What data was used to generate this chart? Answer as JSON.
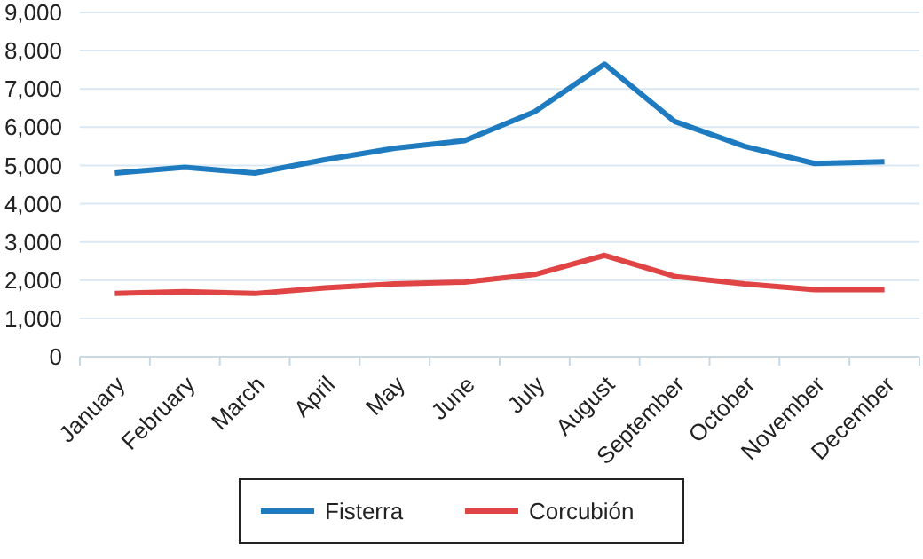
{
  "chart_data": {
    "type": "line",
    "categories": [
      "January",
      "February",
      "March",
      "April",
      "May",
      "June",
      "July",
      "August",
      "September",
      "October",
      "November",
      "December"
    ],
    "series": [
      {
        "name": "Fisterra",
        "color": "#1f7bc0",
        "values": [
          4800,
          4950,
          4800,
          5150,
          5450,
          5650,
          6400,
          7650,
          6150,
          5500,
          5050,
          5100
        ]
      },
      {
        "name": "Corcubión",
        "color": "#e04444",
        "values": [
          1650,
          1700,
          1650,
          1800,
          1900,
          1950,
          2150,
          2650,
          2100,
          1900,
          1750,
          1750
        ]
      }
    ],
    "ylim": [
      0,
      9000
    ],
    "yticks": [
      {
        "value": 0,
        "label": "0"
      },
      {
        "value": 1000,
        "label": "1,000"
      },
      {
        "value": 2000,
        "label": "2,000"
      },
      {
        "value": 3000,
        "label": "3,000"
      },
      {
        "value": 4000,
        "label": "4,000"
      },
      {
        "value": 5000,
        "label": "5,000"
      },
      {
        "value": 6000,
        "label": "6,000"
      },
      {
        "value": 7000,
        "label": "7,000"
      },
      {
        "value": 8000,
        "label": "8,000"
      },
      {
        "value": 9000,
        "label": "9,000"
      }
    ],
    "grid": "y",
    "legend": "bottom",
    "marker": "none",
    "line_style": "solid"
  }
}
